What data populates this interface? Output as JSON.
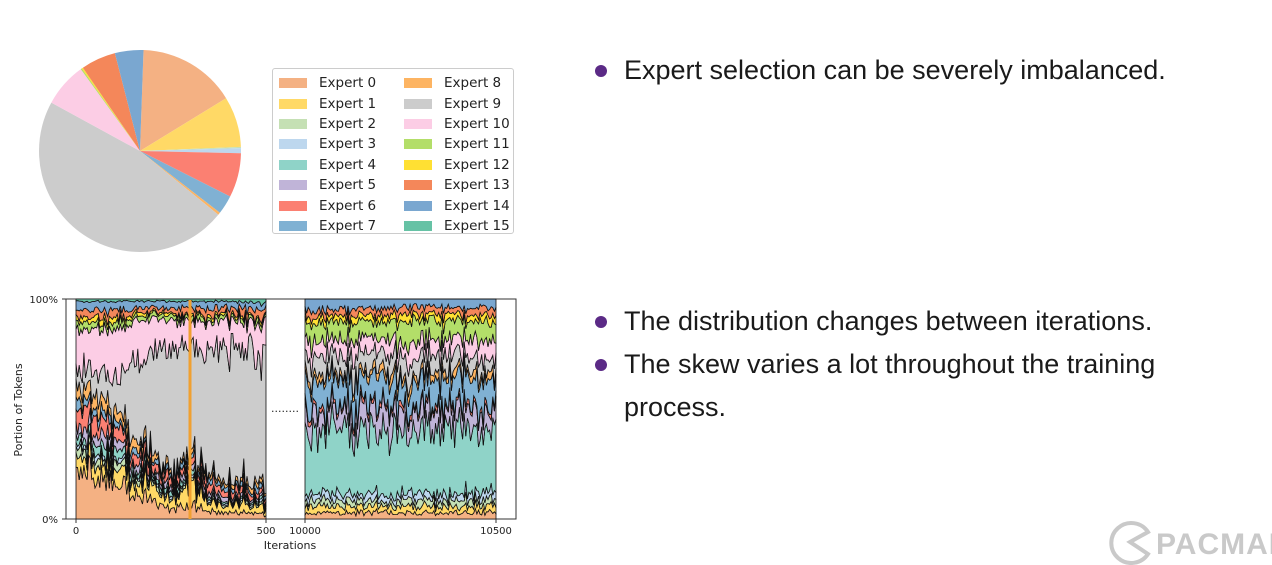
{
  "colors": {
    "experts": [
      "#f4b183",
      "#ffd966",
      "#c5e0b4",
      "#bdd7ee",
      "#8fd3c8",
      "#c0b4d8",
      "#fb8072",
      "#80b1d3",
      "#fdb462",
      "#cccccc",
      "#fccde5",
      "#b3de69",
      "#ffe033",
      "#f4875a",
      "#7aa7d0",
      "#66c2a5"
    ],
    "bullet": "#5b2a86"
  },
  "chart_data": [
    {
      "type": "pie",
      "legend_placement": "right",
      "categories": [
        "Expert 0",
        "Expert 1",
        "Expert 2",
        "Expert 3",
        "Expert 4",
        "Expert 5",
        "Expert 6",
        "Expert 7",
        "Expert 8",
        "Expert 9",
        "Expert 10",
        "Expert 11",
        "Expert 12",
        "Expert 13",
        "Expert 14",
        "Expert 15"
      ],
      "values": [
        15.5,
        8.0,
        0.2,
        0.8,
        0.0,
        0.0,
        7.0,
        3.0,
        0.4,
        46.5,
        7.0,
        0.2,
        0.2,
        5.5,
        4.5,
        0.0
      ],
      "legend": [
        "Expert 0",
        "Expert 1",
        "Expert 2",
        "Expert 3",
        "Expert 4",
        "Expert 5",
        "Expert 6",
        "Expert 7",
        "Expert 8",
        "Expert 9",
        "Expert 10",
        "Expert 11",
        "Expert 12",
        "Expert 13",
        "Expert 14",
        "Expert 15"
      ]
    },
    {
      "type": "area",
      "stacked": "normalized",
      "xlabel": "Iterations",
      "ylabel": "Portion of Tokens",
      "y_ticks": [
        "0%",
        "100%"
      ],
      "segments": [
        {
          "xlim": [
            0,
            500
          ],
          "x_ticks": [
            "0",
            "500"
          ]
        },
        {
          "xlim": [
            10000,
            10500
          ],
          "x_ticks": [
            "10000",
            "10500"
          ]
        }
      ],
      "break_marker": "........",
      "series_names": [
        "Expert 0",
        "Expert 1",
        "Expert 2",
        "Expert 3",
        "Expert 4",
        "Expert 5",
        "Expert 6",
        "Expert 7",
        "Expert 8",
        "Expert 9",
        "Expert 10",
        "Expert 11",
        "Expert 12",
        "Expert 13",
        "Expert 14",
        "Expert 15"
      ],
      "segment_profiles": [
        {
          "x": [
            0,
            100,
            200,
            250,
            300,
            350,
            400,
            500
          ],
          "series": [
            [
              22,
              18,
              8,
              4,
              6,
              3,
              3,
              2
            ],
            [
              6,
              6,
              6,
              5,
              8,
              5,
              4,
              3
            ],
            [
              4,
              3,
              2,
              1,
              1,
              1,
              1,
              1
            ],
            [
              2,
              2,
              1,
              1,
              1,
              1,
              1,
              1
            ],
            [
              4,
              4,
              2,
              2,
              2,
              1,
              1,
              1
            ],
            [
              5,
              4,
              2,
              2,
              2,
              2,
              2,
              1
            ],
            [
              8,
              6,
              4,
              3,
              3,
              4,
              3,
              2
            ],
            [
              4,
              3,
              2,
              2,
              2,
              2,
              2,
              2
            ],
            [
              7,
              5,
              3,
              2,
              2,
              2,
              2,
              2
            ],
            [
              7,
              14,
              46,
              58,
              52,
              55,
              58,
              62
            ],
            [
              18,
              22,
              16,
              12,
              11,
              14,
              13,
              12
            ],
            [
              3,
              3,
              2,
              2,
              2,
              2,
              2,
              2
            ],
            [
              2,
              2,
              1,
              1,
              1,
              1,
              1,
              1
            ],
            [
              3,
              3,
              2,
              2,
              3,
              3,
              3,
              3
            ],
            [
              4,
              4,
              3,
              3,
              3,
              3,
              3,
              3
            ],
            [
              1,
              1,
              1,
              1,
              1,
              1,
              1,
              2
            ]
          ]
        },
        {
          "x": [
            10000,
            10100,
            10200,
            10300,
            10400,
            10500
          ],
          "series": [
            [
              3,
              3,
              3,
              3,
              3,
              3
            ],
            [
              3,
              3,
              3,
              3,
              3,
              3
            ],
            [
              3,
              3,
              2,
              3,
              3,
              3
            ],
            [
              3,
              3,
              3,
              3,
              3,
              3
            ],
            [
              28,
              28,
              30,
              32,
              30,
              29
            ],
            [
              8,
              9,
              10,
              8,
              9,
              9
            ],
            [
              2,
              2,
              2,
              2,
              2,
              2
            ],
            [
              12,
              12,
              11,
              10,
              11,
              12
            ],
            [
              3,
              3,
              3,
              3,
              3,
              3
            ],
            [
              8,
              8,
              8,
              8,
              7,
              7
            ],
            [
              8,
              7,
              7,
              7,
              8,
              8
            ],
            [
              8,
              8,
              8,
              9,
              8,
              8
            ],
            [
              3,
              3,
              3,
              3,
              3,
              3
            ],
            [
              3,
              3,
              3,
              3,
              3,
              3
            ],
            [
              5,
              5,
              4,
              3,
              4,
              4
            ],
            [
              0,
              0,
              0,
              0,
              0,
              0
            ]
          ]
        }
      ],
      "highlight_line": {
        "x": 300,
        "color": "#f0a030"
      }
    }
  ],
  "bullets_top": [
    "Expert selection can be severely imbalanced."
  ],
  "bullets_bottom": [
    "The distribution changes between iterations.",
    "The skew varies a lot throughout the training process."
  ],
  "logo": {
    "text": "PACMAN",
    "icon": "pacman-logo-icon"
  }
}
